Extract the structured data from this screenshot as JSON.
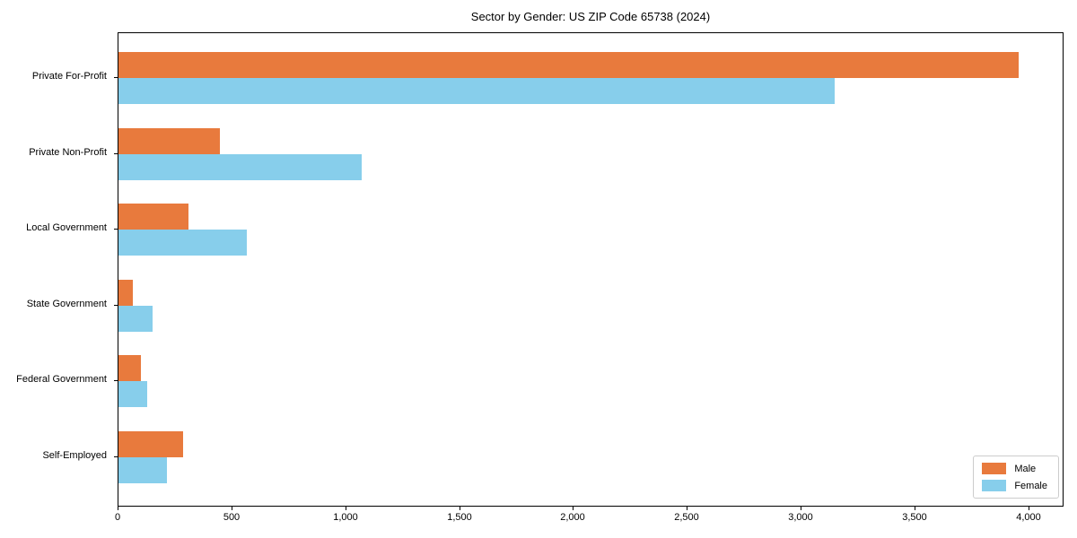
{
  "chart_data": {
    "type": "bar",
    "orientation": "horizontal",
    "title": "Sector by Gender: US ZIP Code 65738 (2024)",
    "categories": [
      "Private For-Profit",
      "Private Non-Profit",
      "Local Government",
      "State Government",
      "Federal Government",
      "Self-Employed"
    ],
    "series": [
      {
        "name": "Male",
        "color": "#E87A3D",
        "values": [
          3960,
          445,
          310,
          62,
          100,
          285
        ]
      },
      {
        "name": "Female",
        "color": "#87CEEB",
        "values": [
          3150,
          1070,
          565,
          152,
          128,
          215
        ]
      }
    ],
    "xlabel": "",
    "ylabel": "",
    "xlim": [
      0,
      4155
    ],
    "xticks": [
      0,
      500,
      1000,
      1500,
      2000,
      2500,
      3000,
      3500,
      4000
    ],
    "grid": false,
    "legend_position": "lower right",
    "background_color": "#ffffff",
    "spine_color": "#000000"
  }
}
